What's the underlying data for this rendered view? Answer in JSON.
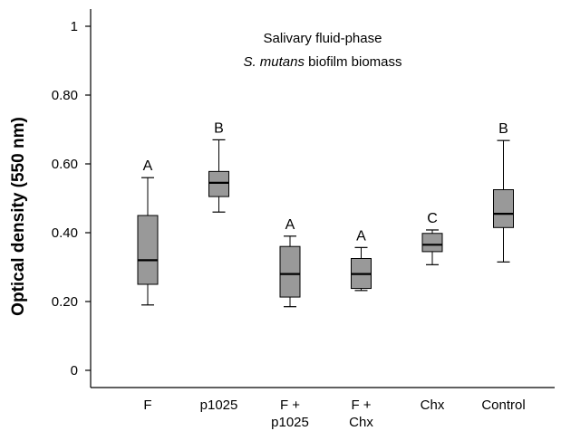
{
  "chart_data": {
    "type": "box",
    "title_line1": "Salivary fluid-phase",
    "title_line2_italic": "S. mutans",
    "title_line2_rest": " biofilm biomass",
    "xlabel": "",
    "ylabel": "Optical density (550 nm)",
    "ylim": [
      -0.05,
      1.05
    ],
    "yticks": [
      0,
      0.2,
      0.4,
      0.6,
      0.8,
      1
    ],
    "ytick_labels": [
      "0",
      "0.20",
      "0.40",
      "0.60",
      "0.80",
      "1"
    ],
    "grid": false,
    "box_color": "#999999",
    "categories": [
      {
        "label_lines": [
          "F"
        ],
        "sig": "A",
        "whisker_low": 0.19,
        "q1": 0.25,
        "median": 0.32,
        "q3": 0.45,
        "whisker_high": 0.56
      },
      {
        "label_lines": [
          "p1025"
        ],
        "sig": "B",
        "whisker_low": 0.46,
        "q1": 0.505,
        "median": 0.545,
        "q3": 0.578,
        "whisker_high": 0.67
      },
      {
        "label_lines": [
          "F +",
          "p1025"
        ],
        "sig": "A",
        "whisker_low": 0.185,
        "q1": 0.213,
        "median": 0.28,
        "q3": 0.36,
        "whisker_high": 0.39
      },
      {
        "label_lines": [
          "F +",
          "Chx"
        ],
        "sig": "A",
        "whisker_low": 0.232,
        "q1": 0.238,
        "median": 0.28,
        "q3": 0.325,
        "whisker_high": 0.357
      },
      {
        "label_lines": [
          "Chx"
        ],
        "sig": "C",
        "whisker_low": 0.307,
        "q1": 0.345,
        "median": 0.365,
        "q3": 0.398,
        "whisker_high": 0.408
      },
      {
        "label_lines": [
          "Control"
        ],
        "sig": "B",
        "whisker_low": 0.315,
        "q1": 0.415,
        "median": 0.455,
        "q3": 0.525,
        "whisker_high": 0.668
      }
    ]
  }
}
